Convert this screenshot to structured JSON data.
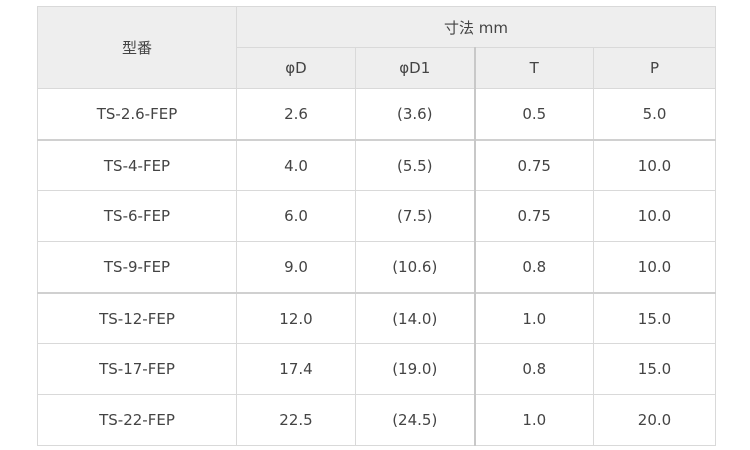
{
  "table": {
    "header": {
      "model_label": "型番",
      "dimension_group_label": "寸法 mm",
      "dimension_columns": [
        "φD",
        "φD1",
        "T",
        "P"
      ]
    },
    "rows": [
      {
        "model": "TS-2.6-FEP",
        "phiD": "2.6",
        "phiD1": "(3.6)",
        "T": "0.5",
        "P": "5.0"
      },
      {
        "model": "TS-4-FEP",
        "phiD": "4.0",
        "phiD1": "(5.5)",
        "T": "0.75",
        "P": "10.0"
      },
      {
        "model": "TS-6-FEP",
        "phiD": "6.0",
        "phiD1": "(7.5)",
        "T": "0.75",
        "P": "10.0"
      },
      {
        "model": "TS-9-FEP",
        "phiD": "9.0",
        "phiD1": "(10.6)",
        "T": "0.8",
        "P": "10.0"
      },
      {
        "model": "TS-12-FEP",
        "phiD": "12.0",
        "phiD1": "(14.0)",
        "T": "1.0",
        "P": "15.0"
      },
      {
        "model": "TS-17-FEP",
        "phiD": "17.4",
        "phiD1": "(19.0)",
        "T": "0.8",
        "P": "15.0"
      },
      {
        "model": "TS-22-FEP",
        "phiD": "22.5",
        "phiD1": "(24.5)",
        "T": "1.0",
        "P": "20.0"
      }
    ]
  }
}
